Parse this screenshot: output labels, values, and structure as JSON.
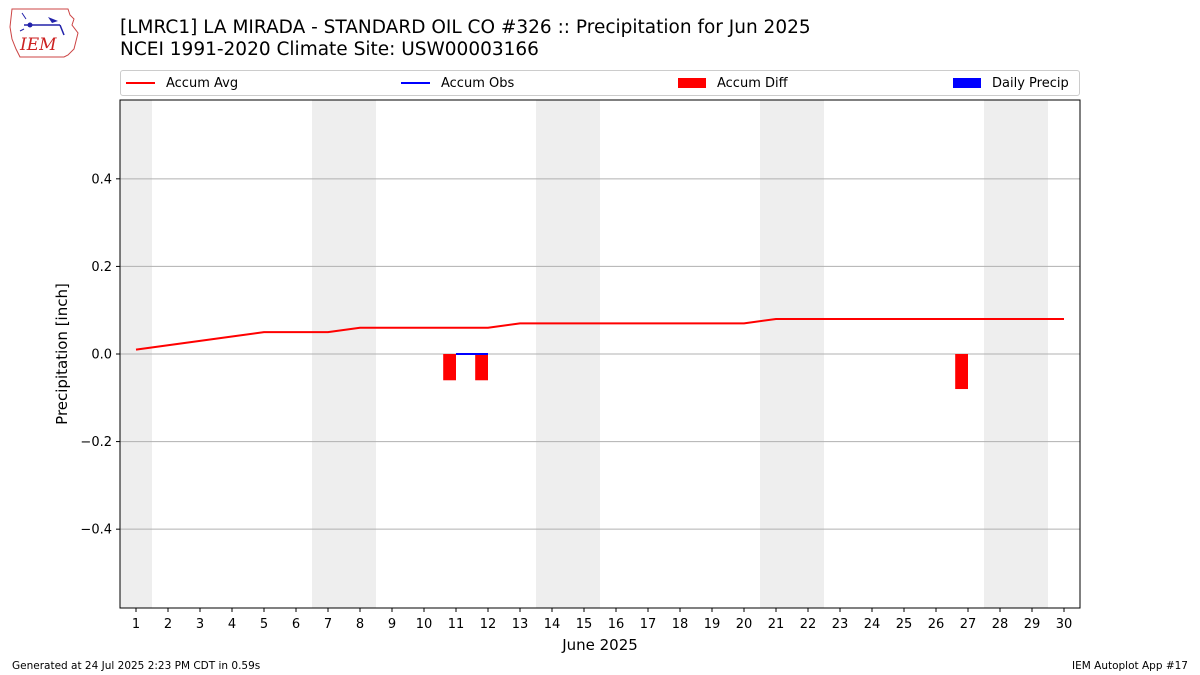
{
  "title_line1": "[LMRC1] LA MIRADA - STANDARD OIL CO #326 :: Precipitation for Jun 2025",
  "title_line2": "NCEI 1991-2020 Climate Site: USW00003166",
  "logo_text": "IEM",
  "legend": [
    {
      "label": "Accum Avg",
      "color": "#ff0000",
      "kind": "line"
    },
    {
      "label": "Accum Obs",
      "color": "#0000ff",
      "kind": "line"
    },
    {
      "label": "Accum Diff",
      "color": "#ff0000",
      "kind": "box"
    },
    {
      "label": "Daily Precip",
      "color": "#0000ff",
      "kind": "box"
    }
  ],
  "footer_left": "Generated at 24 Jul 2025 2:23 PM CDT in 0.59s",
  "footer_right": "IEM Autoplot App #17",
  "chart_data": {
    "type": "line",
    "xlabel": "June 2025",
    "ylabel": "Precipitation [inch]",
    "xlim": [
      0.5,
      30.5
    ],
    "ylim": [
      -0.58,
      0.58
    ],
    "x_ticks": [
      1,
      2,
      3,
      4,
      5,
      6,
      7,
      8,
      9,
      10,
      11,
      12,
      13,
      14,
      15,
      16,
      17,
      18,
      19,
      20,
      21,
      22,
      23,
      24,
      25,
      26,
      27,
      28,
      29,
      30
    ],
    "y_ticks": [
      0.4,
      0.2,
      0.0,
      -0.2,
      -0.4
    ],
    "y_tick_labels": [
      "0.4",
      "0.2",
      "0.0",
      "−0.2",
      "−0.4"
    ],
    "grid": "horizontal",
    "weekend_shading_days": [
      1,
      7,
      8,
      14,
      15,
      21,
      22,
      28,
      29
    ],
    "series": [
      {
        "name": "Accum Avg",
        "type": "line",
        "color": "#ff0000",
        "x": [
          1,
          2,
          3,
          4,
          5,
          6,
          7,
          8,
          9,
          10,
          11,
          12,
          13,
          14,
          15,
          16,
          17,
          18,
          19,
          20,
          21,
          22,
          23,
          24,
          25,
          26,
          27,
          28,
          29,
          30
        ],
        "y": [
          0.01,
          0.02,
          0.03,
          0.04,
          0.05,
          0.05,
          0.05,
          0.06,
          0.06,
          0.06,
          0.06,
          0.06,
          0.07,
          0.07,
          0.07,
          0.07,
          0.07,
          0.07,
          0.07,
          0.07,
          0.08,
          0.08,
          0.08,
          0.08,
          0.08,
          0.08,
          0.08,
          0.08,
          0.08,
          0.08
        ]
      },
      {
        "name": "Accum Obs",
        "type": "line",
        "color": "#0000ff",
        "x": [
          11,
          12
        ],
        "y": [
          0.0,
          0.0
        ]
      },
      {
        "name": "Accum Diff",
        "type": "bar",
        "color": "#ff0000",
        "x": [
          11,
          12,
          27
        ],
        "y": [
          -0.06,
          -0.06,
          -0.08
        ]
      },
      {
        "name": "Daily Precip",
        "type": "bar",
        "color": "#0000ff",
        "x": [],
        "y": []
      }
    ]
  }
}
